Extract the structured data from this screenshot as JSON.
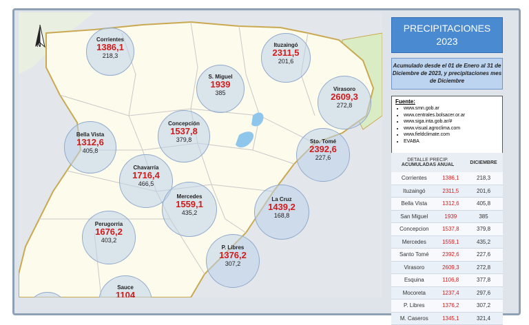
{
  "title": "PRECIPITACIONES 2023",
  "title_line1": "PRECIPITACIONES",
  "title_line2": "2023",
  "subtitle": "Acumulado desde el 01 de Enero al 31 de Diciembre de 2023, y precipitaciones mes de Diciembre",
  "source": {
    "heading": "Fuente:",
    "items": [
      "www.smn.gob.ar",
      "www.centrales.bolsacer.or.ar",
      "www.siga.inta.gob.ar/#",
      "www.visual.agroclima.com",
      "www.fieldclimate.com",
      "EVABA"
    ]
  },
  "map": {
    "north_label": "N",
    "stations": [
      {
        "name": "Corrientes",
        "acum": "1386,1",
        "dic": "218,3"
      },
      {
        "name": "Ituzaingó",
        "acum": "2311,5",
        "dic": "201,6"
      },
      {
        "name": "S. Miguel",
        "acum": "1939",
        "dic": "385"
      },
      {
        "name": "Virasoro",
        "acum": "2609,3",
        "dic": "272,8"
      },
      {
        "name": "Concepción",
        "acum": "1537,8",
        "dic": "379,8"
      },
      {
        "name": "Bella Vista",
        "acum": "1312,6",
        "dic": "405,8"
      },
      {
        "name": "Sto. Tomé",
        "acum": "2392,6",
        "dic": "227,6"
      },
      {
        "name": "Chavarría",
        "acum": "1716,4",
        "dic": "466,5"
      },
      {
        "name": "Mercedes",
        "acum": "1559,1",
        "dic": "435,2"
      },
      {
        "name": "La Cruz",
        "acum": "1439,2",
        "dic": "168,8"
      },
      {
        "name": "Perugorria",
        "acum": "1676,2",
        "dic": "403,2"
      },
      {
        "name": "P. Libres",
        "acum": "1376,2",
        "dic": "307,2"
      },
      {
        "name": "Sauce",
        "acum": "1104",
        "dic": ""
      }
    ]
  },
  "table": {
    "header_left": "DETALLE PRECIP. ACUMULADAS ANUAL",
    "header_left_l1": "DETALLE PRECIP.",
    "header_left_l2": "ACUMULADAS ANUAL",
    "header_right": "DICIEMBRE",
    "rows": [
      {
        "place": "Corrientes",
        "acum": "1386,1",
        "dic": "218,3"
      },
      {
        "place": "Ituzaingó",
        "acum": "2311,5",
        "dic": "201,6"
      },
      {
        "place": "Bella Vista",
        "acum": "1312,6",
        "dic": "405,8"
      },
      {
        "place": "San Miguel",
        "acum": "1939",
        "dic": "385"
      },
      {
        "place": "Concepcion",
        "acum": "1537,8",
        "dic": "379,8"
      },
      {
        "place": "Mercedes",
        "acum": "1559,1",
        "dic": "435,2"
      },
      {
        "place": "Santo Tomé",
        "acum": "2392,6",
        "dic": "227,6"
      },
      {
        "place": "Virasoro",
        "acum": "2609,3",
        "dic": "272,8"
      },
      {
        "place": "Esquina",
        "acum": "1106,8",
        "dic": "377,8"
      },
      {
        "place": "Mocoreta",
        "acum": "1237,4",
        "dic": "297,6"
      },
      {
        "place": "P. Libres",
        "acum": "1376,2",
        "dic": "307,2"
      },
      {
        "place": "M. Caseros",
        "acum": "1345,1",
        "dic": "321,4"
      }
    ]
  }
}
